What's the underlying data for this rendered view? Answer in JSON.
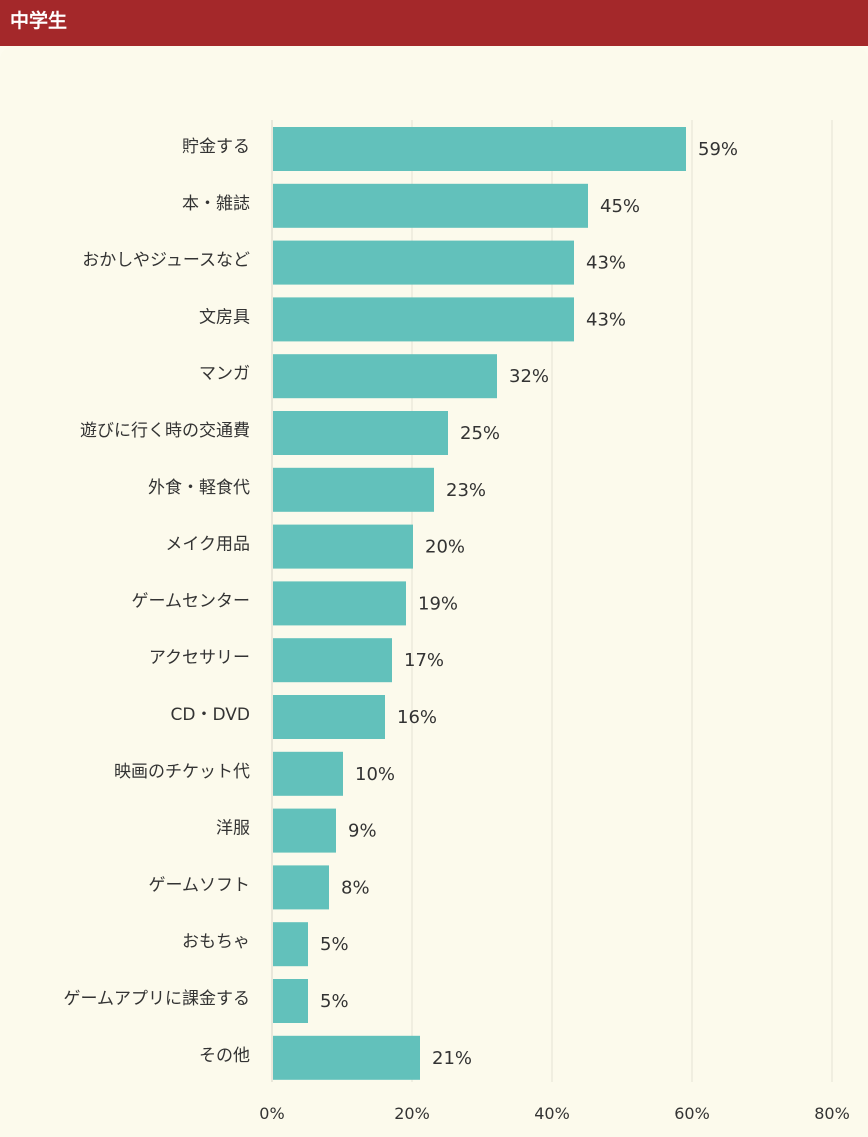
{
  "header": {
    "title": "中学生"
  },
  "colors": {
    "header_bg": "#a4282a",
    "bar": "#62c1bb",
    "background": "#fdfbee",
    "grid": "#e3e1d4"
  },
  "chart_data": {
    "type": "bar",
    "orientation": "horizontal",
    "title": "",
    "xlabel": "",
    "ylabel": "",
    "categories": [
      "貯金する",
      "本・雑誌",
      "おかしやジュースなど",
      "文房具",
      "マンガ",
      "遊びに行く時の交通費",
      "外食・軽食代",
      "メイク用品",
      "ゲームセンター",
      "アクセサリー",
      "CD・DVD",
      "映画のチケット代",
      "洋服",
      "ゲームソフト",
      "おもちゃ",
      "ゲームアプリに課金する",
      "その他"
    ],
    "values": [
      59,
      45,
      43,
      43,
      32,
      25,
      23,
      20,
      19,
      17,
      16,
      10,
      9,
      8,
      5,
      5,
      21
    ],
    "value_labels": [
      "59%",
      "45%",
      "43%",
      "43%",
      "32%",
      "25%",
      "23%",
      "20%",
      "19%",
      "17%",
      "16%",
      "10%",
      "9%",
      "8%",
      "5%",
      "5%",
      "21%"
    ],
    "xlim": [
      0,
      80
    ],
    "x_ticks": [
      0,
      20,
      40,
      60,
      80
    ],
    "x_tick_labels": [
      "0%",
      "20%",
      "40%",
      "60%",
      "80%"
    ],
    "grid": true,
    "legend": "none"
  }
}
